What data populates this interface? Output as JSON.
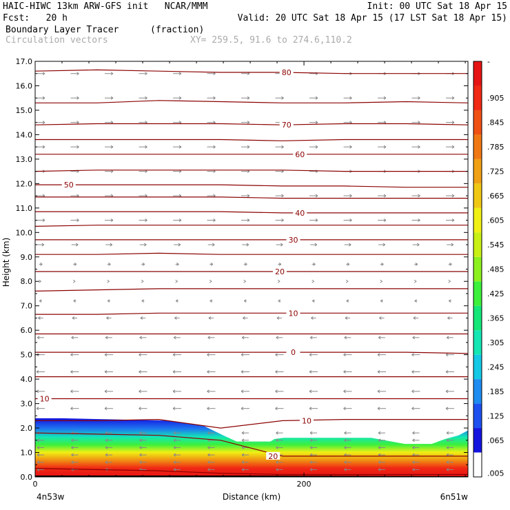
{
  "header": {
    "line1_left": "HAIC-HIWC 13km ARW-GFS init   NCAR/MMM",
    "line1_right": "Init: 00 UTC Sat 18 Apr 15",
    "line2_left": "Fcst:   20 h",
    "line2_right": "Valid: 20 UTC Sat 18 Apr 15 (17 LST Sat 18 Apr 15)",
    "field_name": "Boundary Layer Tracer",
    "field_units": "(fraction)",
    "vector_label": "Circulation vectors",
    "xy_label": "XY= 259.5, 91.6 to 274.6,110.2"
  },
  "chart_data": {
    "type": "area",
    "xlabel": "Distance (km)",
    "ylabel": "Height (km)",
    "xlim": [
      0,
      322
    ],
    "ylim": [
      0,
      17
    ],
    "x_ticks": [
      {
        "v": 0,
        "label": "0"
      },
      {
        "v": 200,
        "label": "200"
      }
    ],
    "x_end_labels": {
      "left": "4n53w",
      "right": "6n51w"
    },
    "y_ticks": [
      "0.0",
      "1.0",
      "2.0",
      "3.0",
      "4.0",
      "5.0",
      "6.0",
      "7.0",
      "8.0",
      "9.0",
      "10.0",
      "11.0",
      "12.0",
      "13.0",
      "14.0",
      "15.0",
      "16.0",
      "17.0"
    ],
    "colorbar": {
      "labels": [
        "-",
        ".905",
        ".845",
        ".785",
        ".725",
        ".665",
        ".605",
        ".545",
        ".485",
        ".425",
        ".365",
        ".305",
        ".245",
        ".185",
        ".125",
        ".065",
        ".005"
      ],
      "colors": [
        "#ffffff",
        "#1414e0",
        "#1e50f0",
        "#1e8cf0",
        "#14c8e6",
        "#14e6b4",
        "#14e678",
        "#3cf03c",
        "#8cf01e",
        "#c8f014",
        "#f0f014",
        "#f0c814",
        "#f0a014",
        "#f07814",
        "#f05014",
        "#f02814",
        "#e61414"
      ]
    },
    "tracer_top_km": [
      [
        0,
        2.4
      ],
      [
        20,
        2.4
      ],
      [
        60,
        2.35
      ],
      [
        100,
        2.3
      ],
      [
        125,
        2.1
      ],
      [
        140,
        1.7
      ],
      [
        150,
        1.45
      ],
      [
        175,
        1.45
      ],
      [
        178,
        1.55
      ],
      [
        185,
        1.6
      ],
      [
        220,
        1.6
      ],
      [
        250,
        1.6
      ],
      [
        260,
        1.5
      ],
      [
        275,
        1.35
      ],
      [
        295,
        1.35
      ],
      [
        305,
        1.55
      ],
      [
        315,
        1.7
      ],
      [
        322,
        1.9
      ]
    ],
    "temperature_contours": [
      {
        "label": "80",
        "y": [
          16.6,
          16.65,
          16.6,
          16.55,
          16.55,
          16.5,
          16.5,
          16.5
        ],
        "label_x": 187
      },
      {
        "label": "",
        "y": [
          15.3,
          15.3,
          15.4,
          15.35,
          15.3,
          15.3,
          15.35,
          15.3
        ]
      },
      {
        "label": "70",
        "y": [
          14.4,
          14.45,
          14.45,
          14.45,
          14.4,
          14.45,
          14.45,
          14.4
        ],
        "label_x": 187
      },
      {
        "label": "",
        "y": [
          13.8,
          13.8,
          13.8,
          13.8,
          13.75,
          13.8,
          13.8,
          13.8
        ]
      },
      {
        "label": "60",
        "y": [
          13.2,
          13.2,
          13.2,
          13.2,
          13.2,
          13.2,
          13.2,
          13.2
        ],
        "label_x": 197
      },
      {
        "label": "",
        "y": [
          12.5,
          12.55,
          12.55,
          12.55,
          12.55,
          12.5,
          12.5,
          12.5
        ]
      },
      {
        "label": "50",
        "y": [
          11.95,
          11.95,
          11.95,
          11.95,
          11.9,
          11.9,
          11.85,
          11.85
        ],
        "label_x": 25
      },
      {
        "label": "",
        "y": [
          11.45,
          11.45,
          11.45,
          11.45,
          11.4,
          11.4,
          11.4,
          11.4
        ]
      },
      {
        "label": "40",
        "y": [
          10.85,
          10.85,
          10.85,
          10.85,
          10.8,
          10.8,
          10.8,
          10.8
        ],
        "label_x": 197
      },
      {
        "label": "",
        "y": [
          10.25,
          10.3,
          10.3,
          10.3,
          10.3,
          10.3,
          10.3,
          10.3
        ]
      },
      {
        "label": "30",
        "y": [
          9.7,
          9.7,
          9.7,
          9.7,
          9.7,
          9.7,
          9.7,
          9.7
        ],
        "label_x": 192
      },
      {
        "label": "",
        "y": [
          9.1,
          9.1,
          9.15,
          9.1,
          9.1,
          9.1,
          9.1,
          9.1
        ]
      },
      {
        "label": "20",
        "y": [
          8.4,
          8.4,
          8.4,
          8.4,
          8.4,
          8.4,
          8.4,
          8.4
        ],
        "label_x": 182
      },
      {
        "label": "",
        "y": [
          7.6,
          7.65,
          7.7,
          7.7,
          7.7,
          7.7,
          7.7,
          7.7
        ]
      },
      {
        "label": "10",
        "y": [
          6.65,
          6.65,
          6.7,
          6.7,
          6.7,
          6.7,
          6.7,
          6.7
        ],
        "label_x": 192
      },
      {
        "label": "",
        "y": [
          5.85,
          5.85,
          5.85,
          5.85,
          5.85,
          5.85,
          5.85,
          5.85
        ]
      },
      {
        "label": "0",
        "y": [
          5.1,
          5.1,
          5.1,
          5.1,
          5.1,
          5.1,
          5.1,
          5.05
        ],
        "label_x": 192
      },
      {
        "label": "",
        "y": [
          4.1,
          4.1,
          4.1,
          4.1,
          4.1,
          4.1,
          4.1,
          4.1
        ]
      },
      {
        "label": "10",
        "y": [
          3.2,
          3.2,
          3.2,
          3.2,
          3.2,
          3.2,
          3.2,
          3.2
        ],
        "label_x": 7
      },
      {
        "label": "10",
        "y": [
          2.3,
          2.3,
          2.35,
          2.0,
          2.3,
          2.35,
          2.35,
          2.35
        ],
        "label_x": 202
      },
      {
        "label": "20",
        "y": [
          1.8,
          1.75,
          1.7,
          1.5,
          0.85,
          0.85,
          0.85,
          0.85
        ],
        "label_x": 177
      },
      {
        "label": "",
        "y": [
          0.35,
          0.3,
          0.25,
          0.15,
          0.1,
          0.1,
          0.1,
          0.1
        ]
      }
    ],
    "contour_color": "#8b0000",
    "vector_color": "#888888",
    "wind_profile": [
      {
        "z": 16.5,
        "u": 1
      },
      {
        "z": 15.5,
        "u": 1
      },
      {
        "z": 14.5,
        "u": 1
      },
      {
        "z": 13.5,
        "u": 1
      },
      {
        "z": 12.5,
        "u": 1
      },
      {
        "z": 11.5,
        "u": 1
      },
      {
        "z": 10.5,
        "u": 1
      },
      {
        "z": 9.5,
        "u": 0.8
      },
      {
        "z": 8.7,
        "u": 0.4
      },
      {
        "z": 8.0,
        "u": 0.1
      },
      {
        "z": 7.2,
        "u": -0.3
      },
      {
        "z": 6.5,
        "u": -0.6
      },
      {
        "z": 5.7,
        "u": -0.8
      },
      {
        "z": 5.0,
        "u": -1
      },
      {
        "z": 4.3,
        "u": -1
      },
      {
        "z": 3.5,
        "u": -1
      },
      {
        "z": 2.8,
        "u": -1
      }
    ]
  }
}
